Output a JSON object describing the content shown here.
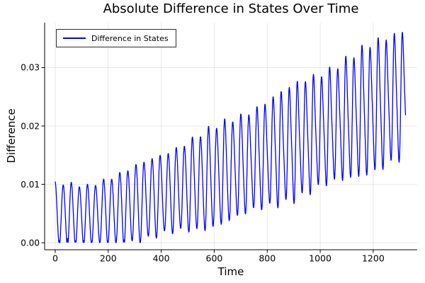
{
  "chart_data": {
    "type": "line",
    "title": "Absolute Difference in States Over Time",
    "xlabel": "Time",
    "ylabel": "Difference",
    "legend": {
      "position": "top-left",
      "entries": [
        {
          "label": "Difference in States",
          "color": "#0000ff"
        }
      ]
    },
    "axes": {
      "xlim": [
        -40,
        1366
      ],
      "ylim": [
        -0.0012,
        0.0377
      ],
      "xticks": [
        {
          "v": 0,
          "label": "0"
        },
        {
          "v": 200,
          "label": "200"
        },
        {
          "v": 400,
          "label": "400"
        },
        {
          "v": 600,
          "label": "600"
        },
        {
          "v": 800,
          "label": "800"
        },
        {
          "v": 1000,
          "label": "1000"
        },
        {
          "v": 1200,
          "label": "1200"
        }
      ],
      "yticks": [
        {
          "v": 0.0,
          "label": "0.00"
        },
        {
          "v": 0.01,
          "label": "0.01"
        },
        {
          "v": 0.02,
          "label": "0.02"
        },
        {
          "v": 0.03,
          "label": "0.03"
        }
      ],
      "grid": true
    },
    "style": {
      "line_color": "#0000ff",
      "line_width": 1.3,
      "grid_color": "rgba(0,0,0,0.09)",
      "axis_color": "#000000",
      "tick_label_color": "#000000",
      "background": "#ffffff"
    },
    "series": [
      {
        "name": "Difference in States",
        "color": "#0000ff",
        "generator": {
          "note": "abs-value oscillation; envelope values read from plot pixels",
          "t_start": 0,
          "t_end": 1322,
          "dt": 0.6,
          "period": 30.5,
          "envelope_t": [
            0,
            120,
            250,
            400,
            550,
            700,
            850,
            1000,
            1150,
            1322
          ],
          "upper_envelope": [
            0.01,
            0.0098,
            0.0118,
            0.015,
            0.0183,
            0.0215,
            0.025,
            0.0285,
            0.032,
            0.0362
          ],
          "lower_envelope": [
            -0.0004,
            -0.0004,
            -0.0002,
            0.0014,
            0.0024,
            0.0048,
            0.0072,
            0.0098,
            0.0122,
            0.0148
          ],
          "second_harmonic": {
            "min": 0.04,
            "max": 0.18,
            "ramp_start": 300,
            "ramp_end": 900,
            "phase": 1.5
          },
          "amp_wobble": {
            "amount": 0.04,
            "period": 290,
            "phase": 1.2
          },
          "alternation": {
            "amount": 0.06,
            "period": 65,
            "phase": 0.8
          }
        }
      }
    ]
  }
}
